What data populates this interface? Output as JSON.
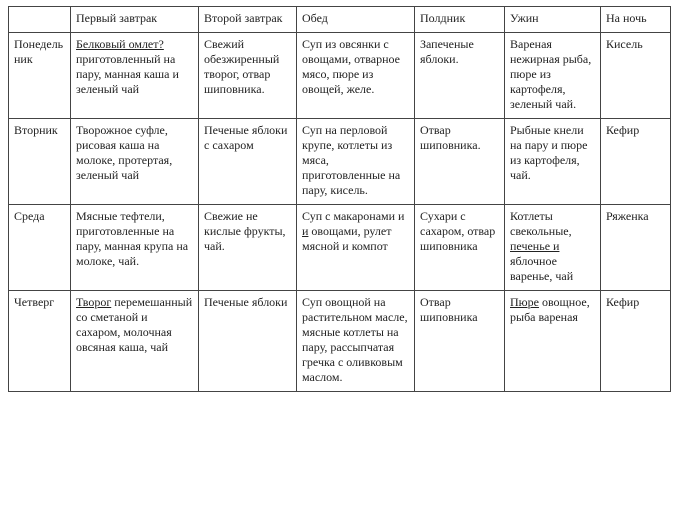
{
  "table": {
    "columns": [
      "",
      "Первый завтрак",
      "Второй завтрак",
      "Обед",
      "Полдник",
      "Ужин",
      "На ночь"
    ],
    "rows": [
      {
        "day": "Понедельник",
        "b1_a": "Белковый омлет?",
        "b1_b": " приготовленный на пару, манная каша и зеленый чай",
        "b2": "Свежий обезжиренный творог, отвар шиповника.",
        "lunch": "Суп из овсянки с овощами, отварное мясо, пюре из овощей, желе.",
        "snack": "Запеченые яблоки.",
        "dinner": "Вареная нежирная рыба, пюре из картофеля, зеленый чай.",
        "night": "Кисель"
      },
      {
        "day": "Вторник",
        "b1": "Творожное суфле, рисовая каша на молоке, протертая, зеленый чай",
        "b2": "Печеные яблоки с сахаром",
        "lunch": "Суп на перловой крупе, котлеты из мяса, приготовленные на пару, кисель.",
        "snack": "Отвар шиповника.",
        "dinner": "Рыбные кнели на пару и пюре из картофеля, чай.",
        "night": "Кефир"
      },
      {
        "day": "Среда",
        "b1": "Мясные тефтели, приготовленные на пару, манная крупа на молоке, чай.",
        "b2": "Свежие не кислые фрукты, чай.",
        "lunch_a": "Суп с макаронами и ",
        "lunch_b": "и",
        "lunch_c": " овощами, рулет мясной и компот",
        "snack": "Сухари с сахаром, отвар шиповника",
        "dinner_a": "Котлеты свекольные, ",
        "dinner_b": "печенье и",
        "dinner_c": " яблочное варенье, чай",
        "night": "Ряженка"
      },
      {
        "day": "Четверг",
        "b1_a": "Творог",
        "b1_b": " перемешанный со сметаной и сахаром, молочная овсяная каша, чай",
        "b2": "Печеные яблоки",
        "lunch": "Суп овощной на растительном масле, мясные котлеты на пару, рассыпчатая гречка с оливковым маслом.",
        "snack": "Отвар шиповника",
        "dinner_a": "Пюре",
        "dinner_b": " овощное, рыба вареная",
        "night": "Кефир"
      }
    ]
  }
}
